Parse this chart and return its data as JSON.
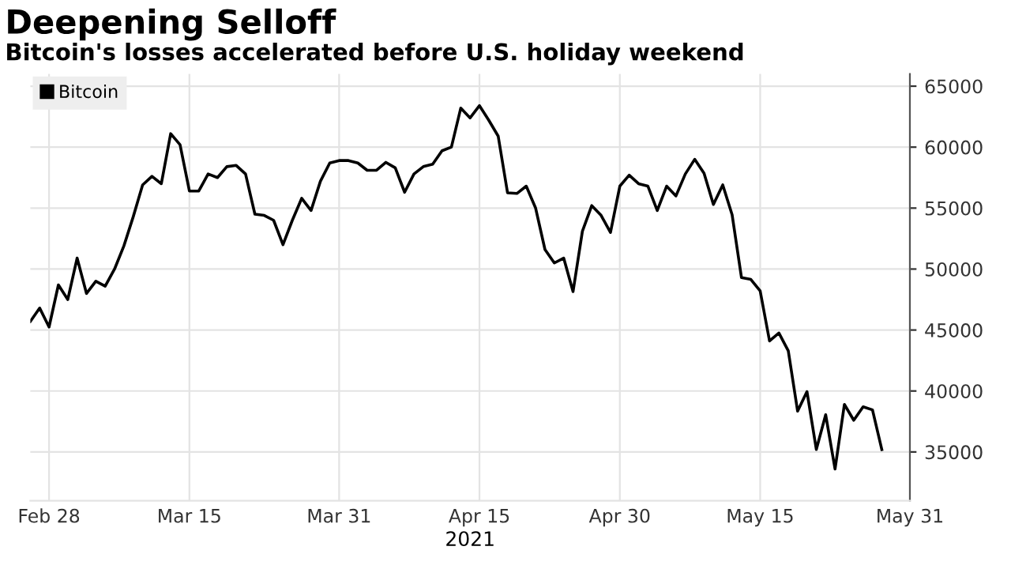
{
  "chart_data": {
    "type": "line",
    "title": "Deepening Selloff",
    "subtitle": "Bitcoin's losses accelerated before U.S. holiday weekend",
    "xlabel": "2021",
    "x": [
      "2021-02-26",
      "2021-02-27",
      "2021-02-28",
      "2021-03-01",
      "2021-03-02",
      "2021-03-03",
      "2021-03-04",
      "2021-03-05",
      "2021-03-06",
      "2021-03-07",
      "2021-03-08",
      "2021-03-09",
      "2021-03-10",
      "2021-03-11",
      "2021-03-12",
      "2021-03-13",
      "2021-03-14",
      "2021-03-15",
      "2021-03-16",
      "2021-03-17",
      "2021-03-18",
      "2021-03-19",
      "2021-03-20",
      "2021-03-21",
      "2021-03-22",
      "2021-03-23",
      "2021-03-24",
      "2021-03-25",
      "2021-03-26",
      "2021-03-27",
      "2021-03-28",
      "2021-03-29",
      "2021-03-30",
      "2021-03-31",
      "2021-04-01",
      "2021-04-02",
      "2021-04-03",
      "2021-04-04",
      "2021-04-05",
      "2021-04-06",
      "2021-04-07",
      "2021-04-08",
      "2021-04-09",
      "2021-04-10",
      "2021-04-11",
      "2021-04-12",
      "2021-04-13",
      "2021-04-14",
      "2021-04-15",
      "2021-04-16",
      "2021-04-17",
      "2021-04-18",
      "2021-04-19",
      "2021-04-20",
      "2021-04-21",
      "2021-04-22",
      "2021-04-23",
      "2021-04-24",
      "2021-04-25",
      "2021-04-26",
      "2021-04-27",
      "2021-04-28",
      "2021-04-29",
      "2021-04-30",
      "2021-05-01",
      "2021-05-02",
      "2021-05-03",
      "2021-05-04",
      "2021-05-05",
      "2021-05-06",
      "2021-05-07",
      "2021-05-08",
      "2021-05-09",
      "2021-05-10",
      "2021-05-11",
      "2021-05-12",
      "2021-05-13",
      "2021-05-14",
      "2021-05-15",
      "2021-05-16",
      "2021-05-17",
      "2021-05-18",
      "2021-05-19",
      "2021-05-20",
      "2021-05-21",
      "2021-05-22",
      "2021-05-23",
      "2021-05-24",
      "2021-05-25",
      "2021-05-26",
      "2021-05-27",
      "2021-05-28"
    ],
    "series": [
      {
        "name": "Bitcoin",
        "color": "#000000",
        "values": [
          45700,
          46800,
          45250,
          48700,
          47500,
          50900,
          48000,
          49000,
          48600,
          50000,
          51900,
          54300,
          56900,
          57600,
          57000,
          61100,
          60200,
          56400,
          56400,
          57800,
          57500,
          58400,
          58500,
          57800,
          54500,
          54400,
          54000,
          52000,
          54000,
          55800,
          54800,
          57200,
          58700,
          58900,
          58900,
          58700,
          58100,
          58100,
          58750,
          58300,
          56300,
          57800,
          58400,
          58600,
          59700,
          60000,
          63200,
          62400,
          63400,
          62200,
          60900,
          56250,
          56200,
          56800,
          55000,
          51600,
          50500,
          50900,
          48150,
          53100,
          55200,
          54400,
          53000,
          56800,
          57700,
          57000,
          56800,
          54800,
          56800,
          56000,
          57800,
          59000,
          57850,
          55300,
          56900,
          54450,
          49300,
          49150,
          48200,
          44100,
          44750,
          43300,
          38350,
          39950,
          35200,
          38050,
          33600,
          38900,
          37600,
          38700,
          38450,
          35200
        ]
      }
    ],
    "xlim": [
      "2021-02-26",
      "2021-05-31"
    ],
    "xticks": [
      {
        "value": "2021-02-28",
        "label": "Feb 28"
      },
      {
        "value": "2021-03-15",
        "label": "Mar 15"
      },
      {
        "value": "2021-03-31",
        "label": "Mar 31"
      },
      {
        "value": "2021-04-15",
        "label": "Apr 15"
      },
      {
        "value": "2021-04-30",
        "label": "Apr 30"
      },
      {
        "value": "2021-05-15",
        "label": "May 15"
      },
      {
        "value": "2021-05-31",
        "label": "May 31"
      }
    ],
    "ylim": [
      31000,
      66000
    ],
    "yticks": [
      35000,
      40000,
      45000,
      50000,
      55000,
      60000,
      65000
    ],
    "grid": true,
    "legend": "top left"
  }
}
